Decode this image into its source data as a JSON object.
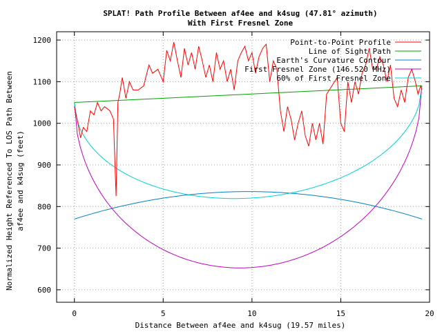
{
  "chart_data": {
    "type": "line",
    "title": "SPLAT! Path Profile Between af4ee and k4sug (47.81° azimuth)",
    "subtitle": "With First Fresnel Zone",
    "xlabel": "Distance Between af4ee and k4sug (19.57 miles)",
    "ylabel": "Normalized Height Referenced To LOS Path Between",
    "ylabel2": "af4ee and k4sug (feet)",
    "xlim": [
      -1,
      20
    ],
    "ylim": [
      570,
      1220
    ],
    "x_ticks": [
      0,
      5,
      10,
      15,
      20
    ],
    "y_ticks": [
      600,
      700,
      800,
      900,
      1000,
      1100,
      1200
    ],
    "x_tick_labels": [
      "0",
      "5",
      "10",
      "15",
      "20"
    ],
    "y_tick_labels": [
      "600",
      "700",
      "800",
      "900",
      "1000",
      "1100",
      "1200"
    ],
    "grid": true,
    "legend_position": "top-right",
    "path_length": 19.57,
    "series": [
      {
        "name": "Point-to-Point Profile",
        "color": "#ff0000",
        "x": [
          0,
          0.2,
          0.35,
          0.5,
          0.7,
          0.9,
          1.1,
          1.3,
          1.5,
          1.7,
          2.0,
          2.2,
          2.3,
          2.35,
          2.45,
          2.55,
          2.7,
          2.9,
          3.1,
          3.3,
          3.6,
          3.9,
          4.2,
          4.4,
          4.7,
          5.0,
          5.2,
          5.4,
          5.6,
          5.8,
          6.0,
          6.2,
          6.4,
          6.6,
          6.8,
          7.0,
          7.2,
          7.4,
          7.6,
          7.8,
          8.0,
          8.2,
          8.4,
          8.6,
          8.8,
          9.0,
          9.2,
          9.4,
          9.6,
          9.8,
          10.0,
          10.2,
          10.4,
          10.6,
          10.8,
          11.0,
          11.2,
          11.4,
          11.6,
          11.8,
          12.0,
          12.2,
          12.4,
          12.6,
          12.8,
          13.0,
          13.2,
          13.4,
          13.6,
          13.8,
          14.0,
          14.2,
          14.5,
          14.8,
          15.0,
          15.2,
          15.4,
          15.6,
          15.8,
          16.0,
          16.2,
          16.4,
          16.6,
          16.8,
          17.0,
          17.2,
          17.4,
          17.6,
          17.8,
          18.0,
          18.2,
          18.4,
          18.6,
          18.8,
          19.0,
          19.2,
          19.35,
          19.5,
          19.57
        ],
        "y": [
          1040,
          1000,
          965,
          990,
          980,
          1030,
          1020,
          1050,
          1030,
          1040,
          1030,
          1010,
          880,
          825,
          1050,
          1070,
          1110,
          1060,
          1100,
          1080,
          1080,
          1090,
          1140,
          1120,
          1130,
          1100,
          1175,
          1150,
          1195,
          1150,
          1110,
          1180,
          1140,
          1170,
          1130,
          1185,
          1150,
          1110,
          1140,
          1100,
          1170,
          1130,
          1150,
          1100,
          1130,
          1080,
          1150,
          1170,
          1185,
          1150,
          1170,
          1120,
          1160,
          1180,
          1190,
          1100,
          1150,
          1130,
          1030,
          980,
          1040,
          1010,
          960,
          1000,
          1030,
          970,
          945,
          1000,
          960,
          1000,
          950,
          1070,
          1090,
          1110,
          1000,
          980,
          1100,
          1050,
          1100,
          1070,
          1120,
          1140,
          1180,
          1130,
          1130,
          1160,
          1140,
          1100,
          1140,
          1060,
          1040,
          1080,
          1050,
          1110,
          1130,
          1100,
          1070,
          1090,
          1080
        ]
      },
      {
        "name": "Line of Sight Path",
        "color": "#00a000",
        "x": [
          0,
          19.57
        ],
        "y": [
          1050,
          1090
        ]
      },
      {
        "name": "Earth's Curvature Contour",
        "color": "#0080c0",
        "x": [
          0,
          19.57
        ],
        "y": [
          770,
          770
        ],
        "curve_peak": 836
      },
      {
        "name": "First Fresnel Zone (146.520 MHz)",
        "color": "#c000c0",
        "x": [
          0,
          19.57
        ],
        "y": [
          1050,
          1090
        ],
        "curve_depth": 417
      },
      {
        "name": "60% of First Fresnel Zone",
        "color": "#00d0d0",
        "x": [
          0,
          19.57
        ],
        "y": [
          1050,
          1090
        ],
        "curve_depth": 250
      }
    ]
  }
}
